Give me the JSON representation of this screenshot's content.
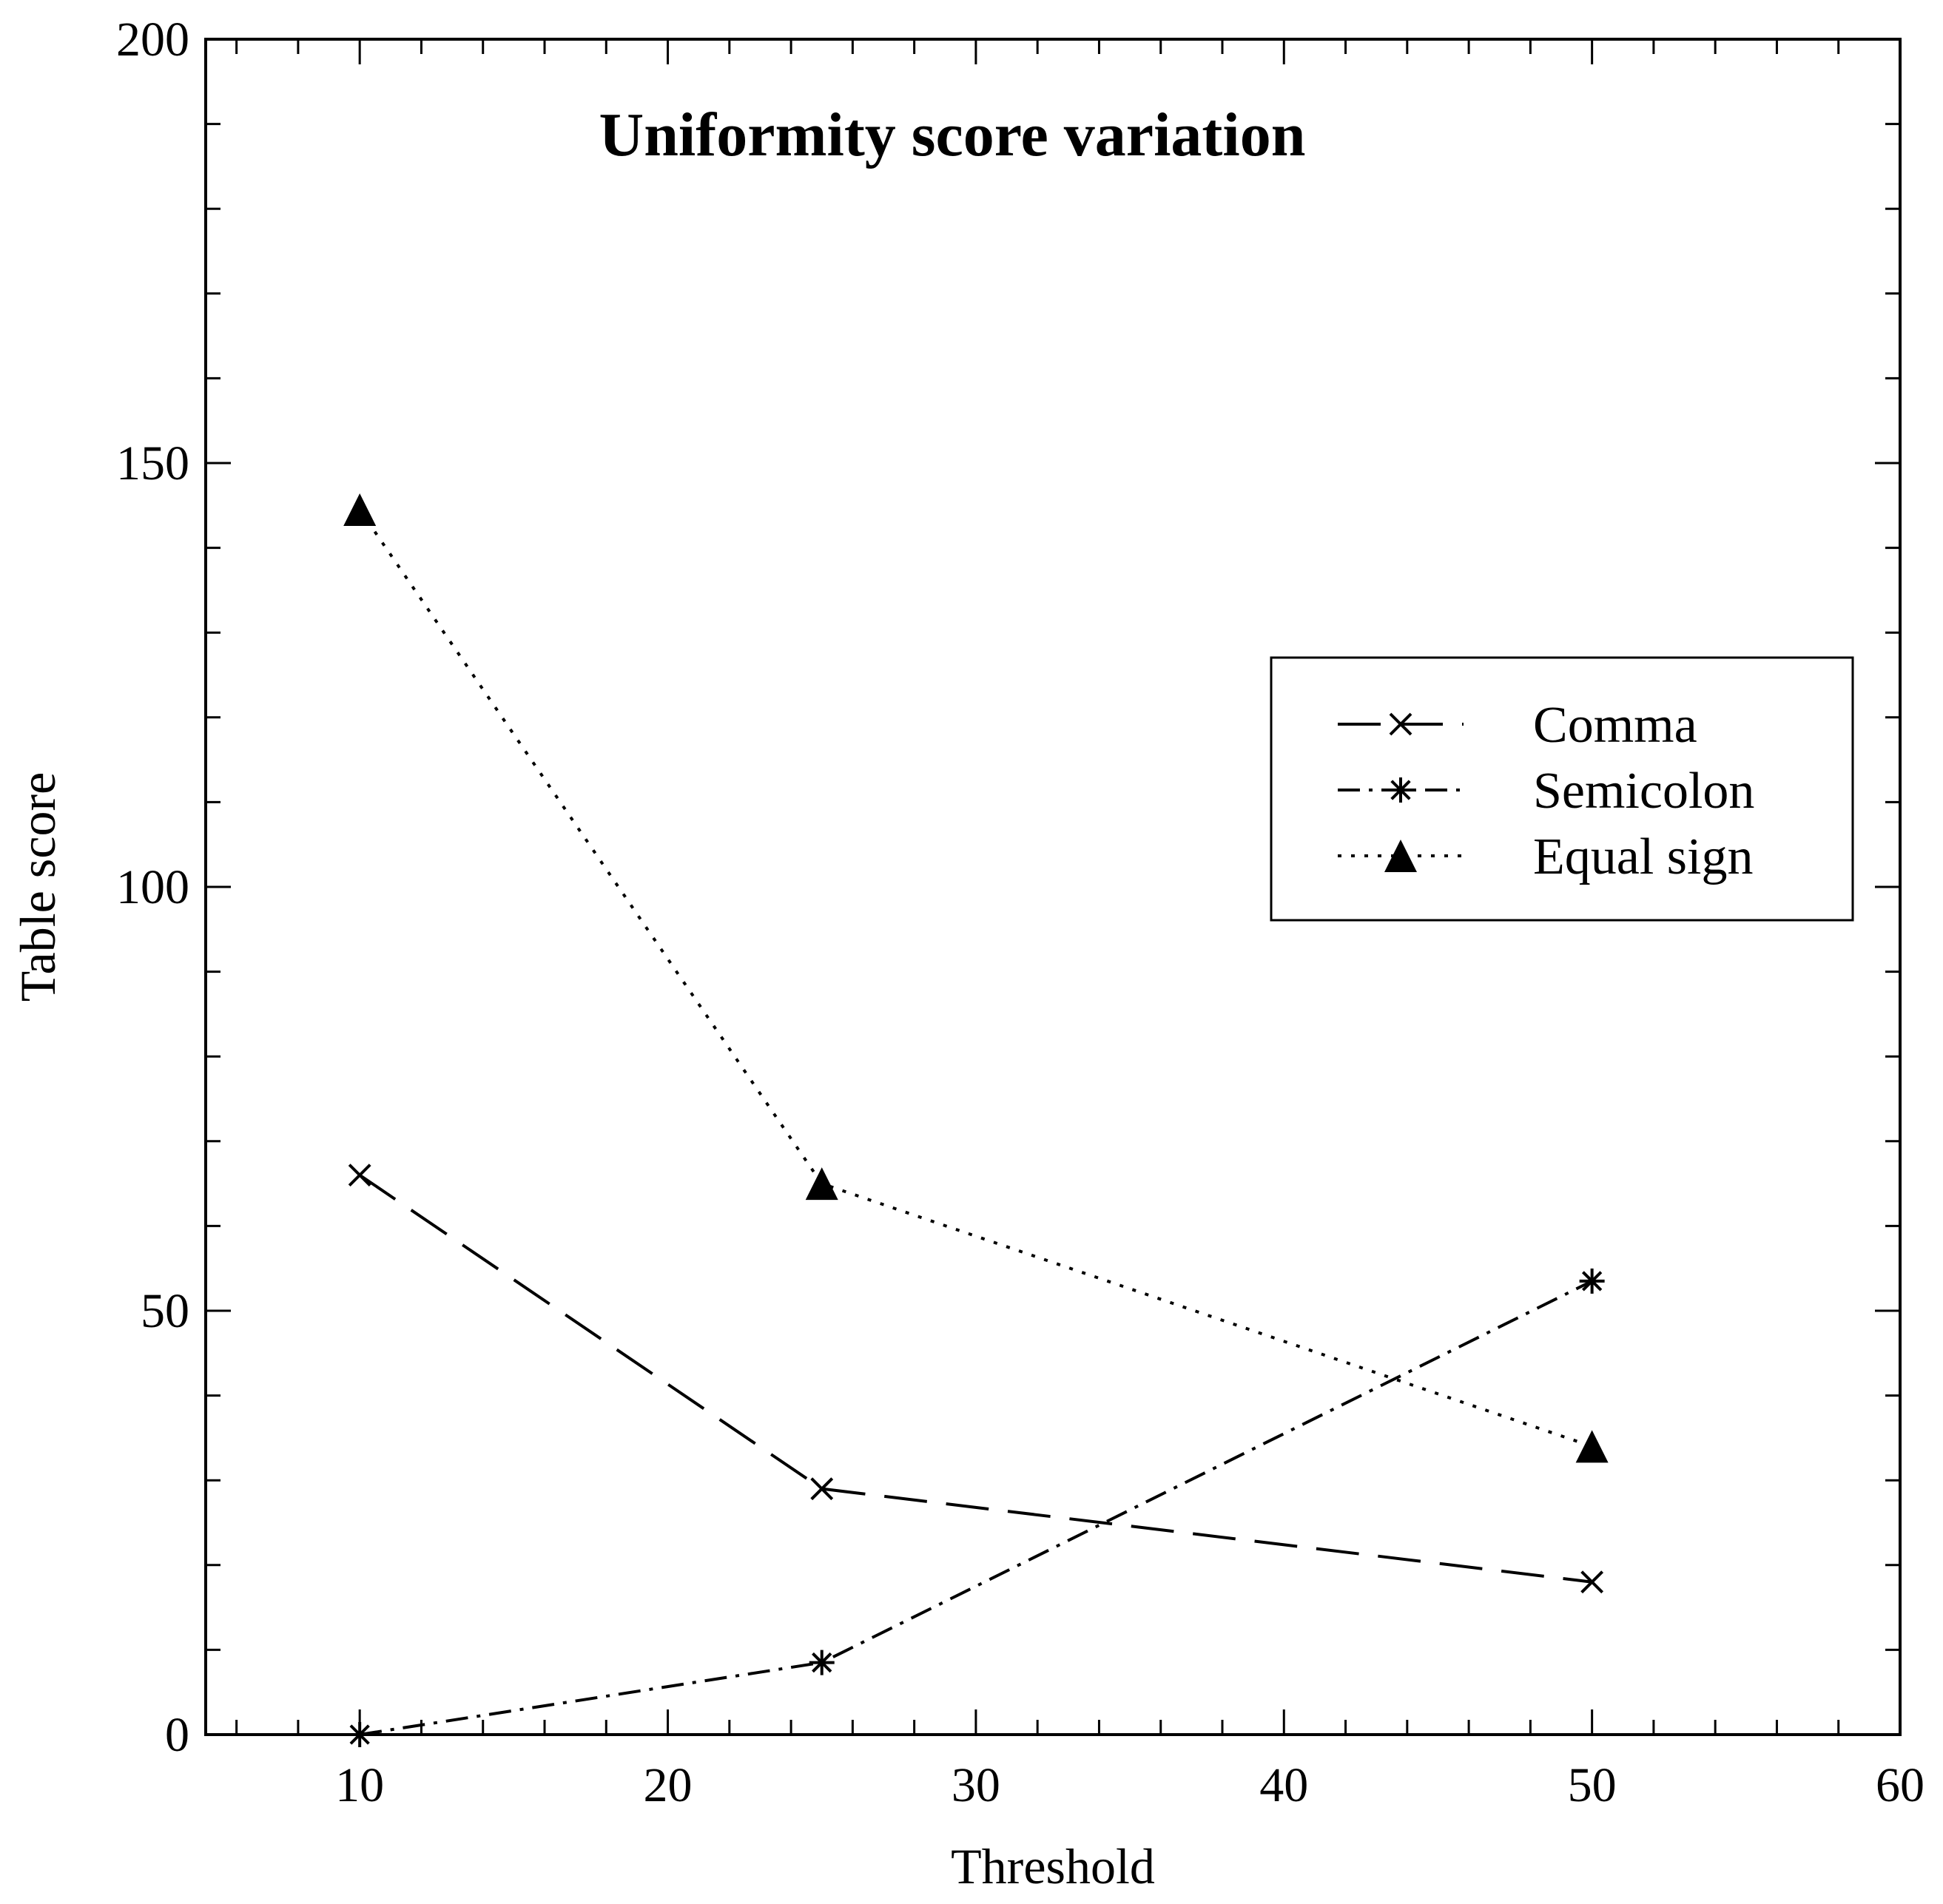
{
  "chart_data": {
    "type": "line",
    "title": "Uniformity score variation",
    "xlabel": "Threshold",
    "ylabel": "Table score",
    "xlim": [
      5,
      60
    ],
    "ylim": [
      0,
      200
    ],
    "xticks": [
      10,
      20,
      30,
      40,
      50,
      60
    ],
    "yticks": [
      0,
      50,
      100,
      150,
      200
    ],
    "x_minor_step": 2,
    "y_minor_step": 10,
    "x": [
      10,
      25,
      50
    ],
    "legend_position": "upper-right",
    "series": [
      {
        "name": "Comma",
        "marker": "x",
        "dash": "long-dash",
        "values": [
          66,
          29,
          18
        ]
      },
      {
        "name": "Semicolon",
        "marker": "asterisk",
        "dash": "dash-dot",
        "values": [
          0,
          8.5,
          53.5
        ]
      },
      {
        "name": "Equal sign",
        "marker": "triangle",
        "dash": "dotted",
        "values": [
          144.5,
          65,
          34
        ]
      }
    ]
  }
}
